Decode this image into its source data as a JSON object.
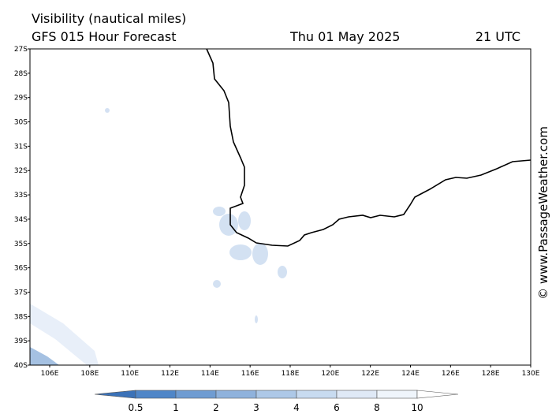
{
  "header": {
    "title": "Visibility (nautical miles)",
    "model": "GFS 015 Hour Forecast",
    "date": "Thu 01 May 2025",
    "time": "21 UTC"
  },
  "map": {
    "lat_labels": [
      "27S",
      "28S",
      "29S",
      "30S",
      "31S",
      "32S",
      "33S",
      "34S",
      "35S",
      "36S",
      "37S",
      "38S",
      "39S",
      "40S"
    ],
    "lon_labels": [
      "106E",
      "108E",
      "110E",
      "112E",
      "114E",
      "116E",
      "118E",
      "120E",
      "122E",
      "124E",
      "126E",
      "128E",
      "130E"
    ]
  },
  "colorbar": {
    "labels": [
      0.5,
      1,
      2,
      3,
      4,
      6,
      8,
      10
    ],
    "colors": [
      "#3b72b8",
      "#4f86c8",
      "#6f9cd2",
      "#8fb2dc",
      "#adc8e7",
      "#c8dbf0",
      "#dfe9f6",
      "#eff5fb",
      "#ffffff"
    ]
  },
  "watermark": "© www.PassageWeather.com"
}
